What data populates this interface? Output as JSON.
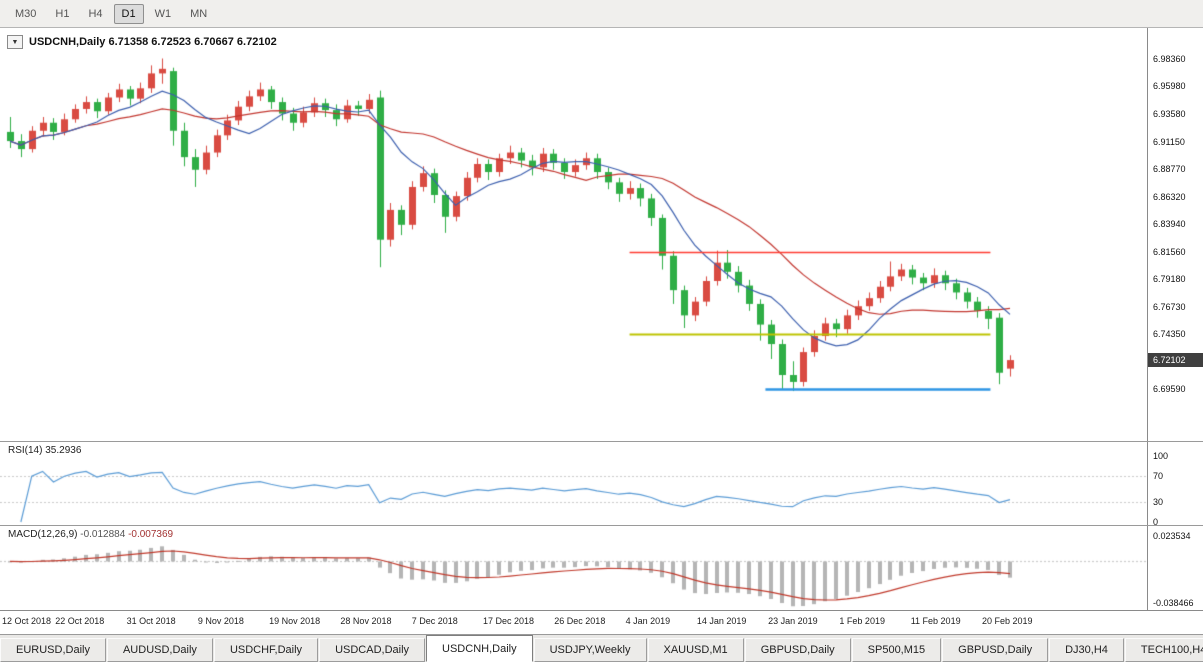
{
  "toolbar": {
    "timeframes": [
      {
        "label": "M30",
        "active": false
      },
      {
        "label": "H1",
        "active": false
      },
      {
        "label": "H4",
        "active": false
      },
      {
        "label": "D1",
        "active": true
      },
      {
        "label": "W1",
        "active": false
      },
      {
        "label": "MN",
        "active": false
      }
    ]
  },
  "chart": {
    "title_symbol": "USDCNH,Daily",
    "title_ohlc": "6.71358 6.72523 6.70667 6.72102",
    "current_price": "6.72102",
    "price_axis": [
      "6.98360",
      "6.95980",
      "6.93580",
      "6.91150",
      "6.88770",
      "6.86320",
      "6.83940",
      "6.81560",
      "6.79180",
      "6.76730",
      "6.74350",
      "6.69590"
    ],
    "colors": {
      "bull": "#d94b42",
      "bear": "#2fae46",
      "ma_fast": "#3c5fae",
      "ma_slow": "#c2362f",
      "rsi": "#5a9bd5",
      "macd_hist": "#b5b5b5",
      "macd_signal": "#c0392b",
      "level_dash": "#c9c9c9"
    },
    "hlines": [
      {
        "price": 6.8156,
        "from": 57,
        "to": 90.2,
        "color": "#ff3b30",
        "width": 1.6
      },
      {
        "price": 6.7435,
        "from": 57,
        "to": 90.2,
        "color": "#bdc400",
        "width": 2
      },
      {
        "price": 6.696,
        "from": 69.5,
        "to": 90.2,
        "color": "#2d95e5",
        "width": 2.5
      }
    ]
  },
  "chart_data": {
    "type": "candlestick",
    "symbol": "USDCNH",
    "timeframe": "Daily",
    "ohlc_current": {
      "open": "6.71358",
      "high": "6.72523",
      "low": "6.70667",
      "close": "6.72102"
    },
    "x_labels": [
      "12 Oct 2018",
      "22 Oct 2018",
      "31 Oct 2018",
      "9 Nov 2018",
      "19 Nov 2018",
      "28 Nov 2018",
      "7 Dec 2018",
      "17 Dec 2018",
      "26 Dec 2018",
      "4 Jan 2019",
      "14 Jan 2019",
      "23 Jan 2019",
      "1 Feb 2019",
      "11 Feb 2019",
      "20 Feb 2019"
    ],
    "price_range_top": 7.0106,
    "price_range_bottom": 6.6496,
    "candles": [
      [
        6.92,
        6.933,
        6.906,
        6.912
      ],
      [
        6.912,
        6.918,
        6.898,
        6.905
      ],
      [
        6.905,
        6.925,
        6.902,
        6.921
      ],
      [
        6.921,
        6.933,
        6.916,
        6.928
      ],
      [
        6.928,
        6.932,
        6.913,
        6.92
      ],
      [
        6.92,
        6.936,
        6.917,
        6.931
      ],
      [
        6.931,
        6.944,
        6.928,
        6.94
      ],
      [
        6.94,
        6.951,
        6.936,
        6.946
      ],
      [
        6.946,
        6.949,
        6.932,
        6.938
      ],
      [
        6.938,
        6.954,
        6.935,
        6.95
      ],
      [
        6.95,
        6.962,
        6.946,
        6.957
      ],
      [
        6.957,
        6.96,
        6.943,
        6.949
      ],
      [
        6.949,
        6.963,
        6.945,
        6.958
      ],
      [
        6.958,
        6.978,
        6.954,
        6.971
      ],
      [
        6.971,
        6.984,
        6.962,
        6.975
      ],
      [
        6.973,
        6.976,
        6.908,
        6.921
      ],
      [
        6.921,
        6.928,
        6.89,
        6.898
      ],
      [
        6.898,
        6.905,
        6.872,
        6.887
      ],
      [
        6.887,
        6.908,
        6.883,
        6.902
      ],
      [
        6.902,
        6.922,
        6.898,
        6.917
      ],
      [
        6.917,
        6.935,
        6.913,
        6.93
      ],
      [
        6.93,
        6.947,
        6.926,
        6.942
      ],
      [
        6.942,
        6.956,
        6.938,
        6.951
      ],
      [
        6.951,
        6.963,
        6.947,
        6.957
      ],
      [
        6.957,
        6.96,
        6.94,
        6.946
      ],
      [
        6.946,
        6.95,
        6.93,
        6.936
      ],
      [
        6.936,
        6.941,
        6.921,
        6.928
      ],
      [
        6.928,
        6.942,
        6.924,
        6.937
      ],
      [
        6.937,
        6.95,
        6.933,
        6.945
      ],
      [
        6.945,
        6.949,
        6.933,
        6.939
      ],
      [
        6.939,
        6.944,
        6.925,
        6.931
      ],
      [
        6.931,
        6.948,
        6.928,
        6.943
      ],
      [
        6.943,
        6.947,
        6.934,
        6.94
      ],
      [
        6.94,
        6.953,
        6.936,
        6.948
      ],
      [
        6.95,
        6.956,
        6.802,
        6.826
      ],
      [
        6.826,
        6.858,
        6.82,
        6.852
      ],
      [
        6.852,
        6.856,
        6.83,
        6.839
      ],
      [
        6.839,
        6.877,
        6.835,
        6.872
      ],
      [
        6.872,
        6.89,
        6.868,
        6.884
      ],
      [
        6.884,
        6.888,
        6.858,
        6.865
      ],
      [
        6.865,
        6.869,
        6.832,
        6.846
      ],
      [
        6.846,
        6.868,
        6.842,
        6.864
      ],
      [
        6.864,
        6.885,
        6.86,
        6.88
      ],
      [
        6.88,
        6.897,
        6.876,
        6.892
      ],
      [
        6.892,
        6.896,
        6.878,
        6.885
      ],
      [
        6.885,
        6.901,
        6.881,
        6.897
      ],
      [
        6.897,
        6.908,
        6.892,
        6.902
      ],
      [
        6.902,
        6.906,
        6.889,
        6.895
      ],
      [
        6.895,
        6.9,
        6.882,
        6.889
      ],
      [
        6.889,
        6.906,
        6.885,
        6.901
      ],
      [
        6.901,
        6.905,
        6.887,
        6.893
      ],
      [
        6.893,
        6.897,
        6.879,
        6.885
      ],
      [
        6.885,
        6.896,
        6.881,
        6.891
      ],
      [
        6.891,
        6.902,
        6.887,
        6.897
      ],
      [
        6.897,
        6.901,
        6.879,
        6.885
      ],
      [
        6.885,
        6.889,
        6.87,
        6.876
      ],
      [
        6.876,
        6.88,
        6.859,
        6.866
      ],
      [
        6.866,
        6.877,
        6.861,
        6.871
      ],
      [
        6.871,
        6.875,
        6.855,
        6.862
      ],
      [
        6.862,
        6.866,
        6.838,
        6.845
      ],
      [
        6.845,
        6.848,
        6.8,
        6.812
      ],
      [
        6.812,
        6.816,
        6.77,
        6.782
      ],
      [
        6.782,
        6.786,
        6.749,
        6.76
      ],
      [
        6.76,
        6.776,
        6.755,
        6.772
      ],
      [
        6.772,
        6.794,
        6.768,
        6.79
      ],
      [
        6.79,
        6.8165,
        6.786,
        6.806
      ],
      [
        6.806,
        6.817,
        6.792,
        6.798
      ],
      [
        6.798,
        6.803,
        6.78,
        6.786
      ],
      [
        6.786,
        6.791,
        6.764,
        6.77
      ],
      [
        6.77,
        6.774,
        6.738,
        6.752
      ],
      [
        6.752,
        6.756,
        6.722,
        6.735
      ],
      [
        6.735,
        6.739,
        6.696,
        6.708
      ],
      [
        6.708,
        6.72,
        6.694,
        6.702
      ],
      [
        6.702,
        6.732,
        6.698,
        6.728
      ],
      [
        6.728,
        6.747,
        6.724,
        6.742
      ],
      [
        6.742,
        6.758,
        6.738,
        6.753
      ],
      [
        6.753,
        6.757,
        6.741,
        6.748
      ],
      [
        6.748,
        6.765,
        6.744,
        6.76
      ],
      [
        6.76,
        6.773,
        6.756,
        6.768
      ],
      [
        6.768,
        6.78,
        6.764,
        6.775
      ],
      [
        6.775,
        6.79,
        6.771,
        6.785
      ],
      [
        6.785,
        6.807,
        6.781,
        6.794
      ],
      [
        6.794,
        6.805,
        6.79,
        6.8
      ],
      [
        6.8,
        6.804,
        6.787,
        6.793
      ],
      [
        6.793,
        6.797,
        6.782,
        6.788
      ],
      [
        6.788,
        6.801,
        6.784,
        6.795
      ],
      [
        6.795,
        6.799,
        6.782,
        6.788
      ],
      [
        6.788,
        6.792,
        6.774,
        6.78
      ],
      [
        6.78,
        6.784,
        6.766,
        6.772
      ],
      [
        6.772,
        6.776,
        6.758,
        6.764
      ],
      [
        6.764,
        6.768,
        6.748,
        6.757
      ],
      [
        6.758,
        6.762,
        6.7,
        6.71
      ],
      [
        6.71358,
        6.72523,
        6.70667,
        6.72102
      ]
    ]
  },
  "rsi": {
    "label": "RSI(14)",
    "value": "35.2936",
    "axis": [
      "100",
      "70",
      "30",
      "0"
    ],
    "dashed_levels": [
      70,
      30
    ]
  },
  "macd": {
    "label": "MACD(12,26,9)",
    "value_main": "-0.012884",
    "value_signal": "-0.007369",
    "axis": [
      "0.023534",
      "-0.038466"
    ]
  },
  "tabs": [
    {
      "label": "EURUSD,Daily",
      "active": false
    },
    {
      "label": "AUDUSD,Daily",
      "active": false
    },
    {
      "label": "USDCHF,Daily",
      "active": false
    },
    {
      "label": "USDCAD,Daily",
      "active": false
    },
    {
      "label": "USDCNH,Daily",
      "active": true
    },
    {
      "label": "USDJPY,Weekly",
      "active": false
    },
    {
      "label": "XAUUSD,M1",
      "active": false
    },
    {
      "label": "GBPUSD,Daily",
      "active": false
    },
    {
      "label": "SP500,M15",
      "active": false
    },
    {
      "label": "GBPUSD,Daily",
      "active": false
    },
    {
      "label": "DJ30,H4",
      "active": false
    },
    {
      "label": "TECH100,H4",
      "active": false
    }
  ]
}
